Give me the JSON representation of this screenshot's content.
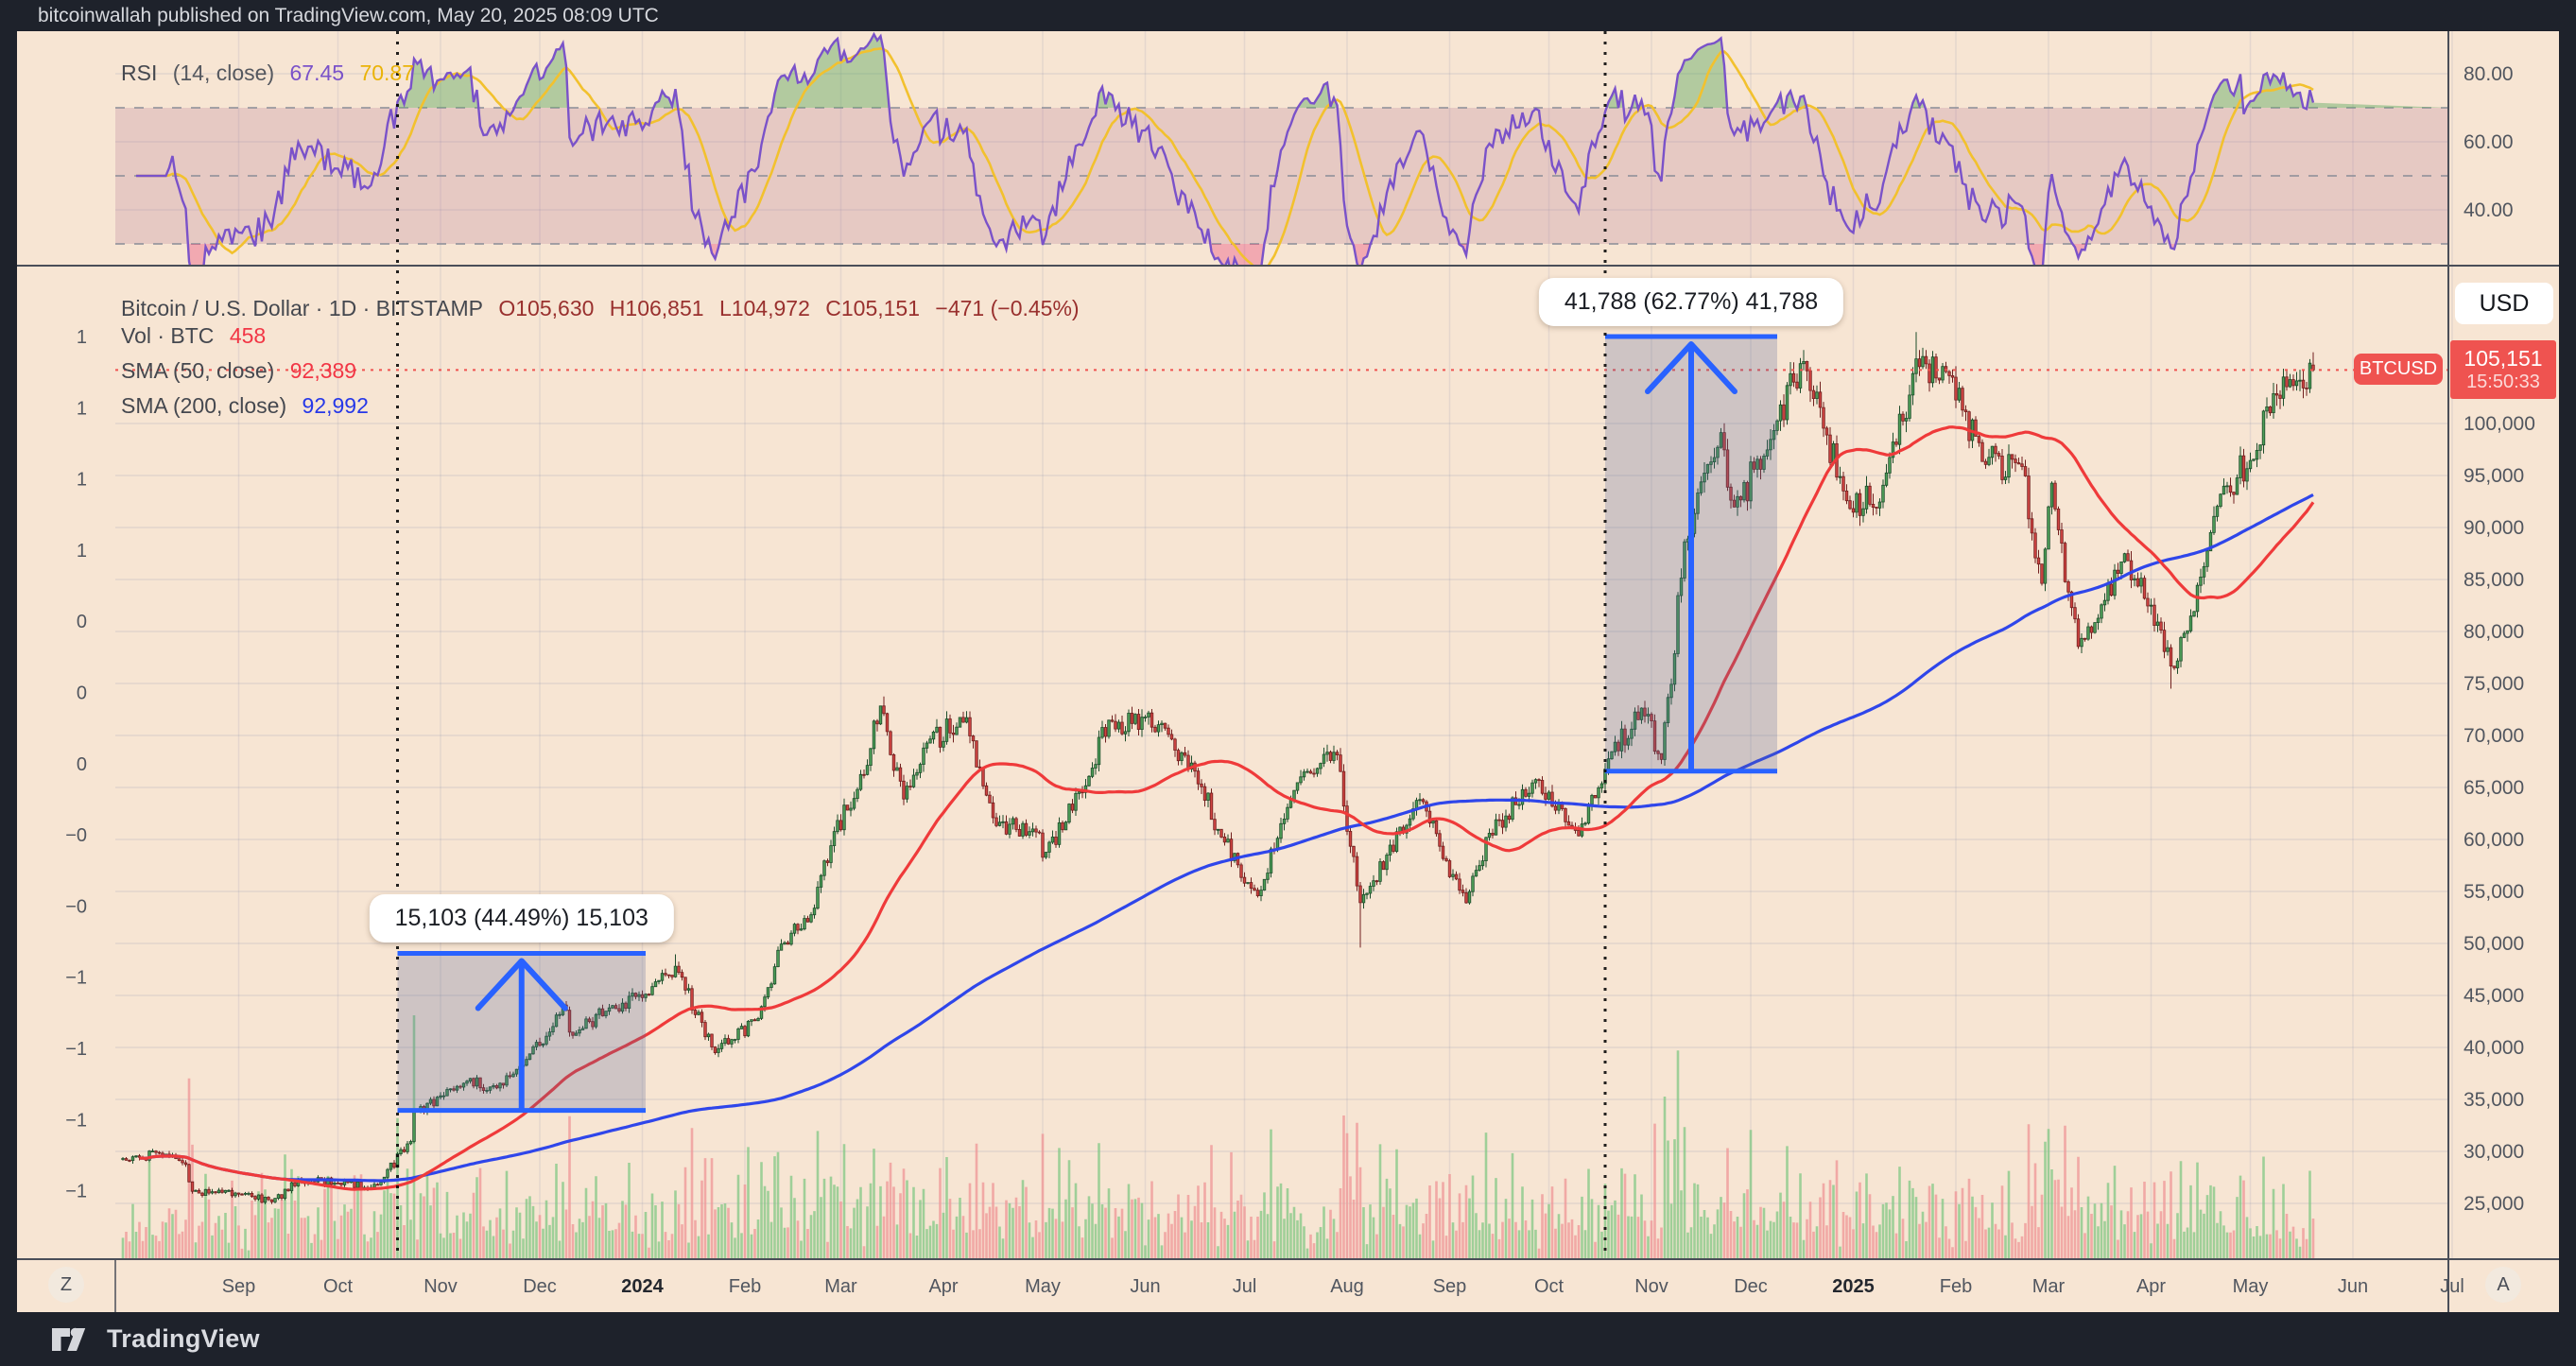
{
  "header": {
    "publish_line": "bitcoinwallah published on TradingView.com, May 20, 2025 08:09 UTC"
  },
  "footer": {
    "brand": "TradingView"
  },
  "rsi_pane": {
    "legend": {
      "title": "RSI",
      "params": "(14, close)",
      "value_main": "67.45",
      "value_ma": "70.87"
    },
    "axis_ticks": [
      "80.00",
      "60.00",
      "40.00"
    ],
    "axis_tick_values": [
      80,
      60,
      40
    ],
    "levels": {
      "upper": 70,
      "middle": 50,
      "lower": 30
    }
  },
  "main_pane": {
    "legend": {
      "symbol_line": "Bitcoin / U.S. Dollar · 1D · BITSTAMP",
      "ohlc": {
        "open": "O105,630",
        "high": "H106,851",
        "low": "L104,972",
        "close": "C105,151",
        "change": "−471 (−0.45%)"
      },
      "vol_label": "Vol · BTC",
      "vol_value": "458",
      "sma50_label": "SMA (50, close)",
      "sma50_value": "92,389",
      "sma200_label": "SMA (200, close)",
      "sma200_value": "92,992"
    },
    "price_axis": {
      "currency_button": "USD",
      "ticks": [
        "100,000",
        "95,000",
        "90,000",
        "85,000",
        "80,000",
        "75,000",
        "70,000",
        "65,000",
        "60,000",
        "55,000",
        "50,000",
        "45,000",
        "40,000",
        "35,000",
        "30,000",
        "25,000"
      ],
      "tick_values": [
        100000,
        95000,
        90000,
        85000,
        80000,
        75000,
        70000,
        65000,
        60000,
        55000,
        50000,
        45000,
        40000,
        35000,
        30000,
        25000
      ],
      "last_price": "105,151",
      "last_time": "15:50:33",
      "symbol_badge": "BTCUSD",
      "auto_label": "A"
    },
    "left_axis_ticks": [
      "1",
      "1",
      "1",
      "1",
      "0",
      "0",
      "0",
      "−0",
      "−0",
      "−1",
      "−1",
      "−1",
      "−1"
    ],
    "time_axis": {
      "zoom_reset_label": "Z",
      "labels": [
        {
          "text": "Sep",
          "date": "2023-09-01",
          "year": false
        },
        {
          "text": "Oct",
          "date": "2023-10-01",
          "year": false
        },
        {
          "text": "Nov",
          "date": "2023-11-01",
          "year": false
        },
        {
          "text": "Dec",
          "date": "2023-12-01",
          "year": false
        },
        {
          "text": "2024",
          "date": "2024-01-01",
          "year": true
        },
        {
          "text": "Feb",
          "date": "2024-02-01",
          "year": false
        },
        {
          "text": "Mar",
          "date": "2024-03-01",
          "year": false
        },
        {
          "text": "Apr",
          "date": "2024-04-01",
          "year": false
        },
        {
          "text": "May",
          "date": "2024-05-01",
          "year": false
        },
        {
          "text": "Jun",
          "date": "2024-06-01",
          "year": false
        },
        {
          "text": "Jul",
          "date": "2024-07-01",
          "year": false
        },
        {
          "text": "Aug",
          "date": "2024-08-01",
          "year": false
        },
        {
          "text": "Sep",
          "date": "2024-09-01",
          "year": false
        },
        {
          "text": "Oct",
          "date": "2024-10-01",
          "year": false
        },
        {
          "text": "Nov",
          "date": "2024-11-01",
          "year": false
        },
        {
          "text": "Dec",
          "date": "2024-12-01",
          "year": false
        },
        {
          "text": "2025",
          "date": "2025-01-01",
          "year": true
        },
        {
          "text": "Feb",
          "date": "2025-02-01",
          "year": false
        },
        {
          "text": "Mar",
          "date": "2025-03-01",
          "year": false
        },
        {
          "text": "Apr",
          "date": "2025-04-01",
          "year": false
        },
        {
          "text": "May",
          "date": "2025-05-01",
          "year": false
        },
        {
          "text": "Jun",
          "date": "2025-06-01",
          "year": false
        },
        {
          "text": "Jul",
          "date": "2025-07-01",
          "year": false
        }
      ]
    },
    "measurements": [
      {
        "label": "15,103 (44.49%) 15,103",
        "from_date": "2023-10-19",
        "to_date": "2024-01-02",
        "from_price": 33947,
        "to_price": 49050
      },
      {
        "label": "41,788 (62.77%) 41,788",
        "from_date": "2024-10-18",
        "to_date": "2024-12-09",
        "from_price": 66573,
        "to_price": 108361
      }
    ]
  },
  "chart_data": {
    "type": "candlestick",
    "title": "Bitcoin / U.S. Dollar, 1D, BITSTAMP",
    "symbol": "BTCUSD",
    "interval": "1D",
    "exchange": "BITSTAMP",
    "start_date": "2023-07-28",
    "end_date": "2025-05-20",
    "ylim": [
      19500,
      113500
    ],
    "rsi_ylim": [
      23,
      92
    ],
    "legend_position": "top-left",
    "grid": true,
    "last_candle": {
      "open": 105630,
      "high": 106851,
      "low": 104972,
      "close": 105151,
      "change": -471,
      "change_pct": -0.45
    },
    "indicators": {
      "sma50_last": 92389,
      "sma200_last": 92992,
      "rsi14_last": 67.45,
      "rsi14_ma_last": 70.87,
      "volume_btc_last": 458
    },
    "price_anchors": [
      [
        "2023-07-28",
        29300
      ],
      [
        "2023-08-08",
        29800
      ],
      [
        "2023-08-16",
        28700
      ],
      [
        "2023-08-18",
        26100
      ],
      [
        "2023-09-01",
        25900
      ],
      [
        "2023-09-11",
        25150
      ],
      [
        "2023-09-19",
        27200
      ],
      [
        "2023-10-01",
        27000
      ],
      [
        "2023-10-13",
        26800
      ],
      [
        "2023-10-23",
        31000
      ],
      [
        "2023-10-24",
        33950
      ],
      [
        "2023-11-02",
        35400
      ],
      [
        "2023-11-09",
        36700
      ],
      [
        "2023-11-16",
        36200
      ],
      [
        "2023-11-24",
        37800
      ],
      [
        "2023-12-05",
        41990
      ],
      [
        "2023-12-08",
        44200
      ],
      [
        "2023-12-11",
        41200
      ],
      [
        "2023-12-22",
        43700
      ],
      [
        "2024-01-02",
        45000
      ],
      [
        "2024-01-08",
        46950
      ],
      [
        "2024-01-11",
        47800
      ],
      [
        "2024-01-23",
        39550
      ],
      [
        "2024-02-05",
        42700
      ],
      [
        "2024-02-12",
        49900
      ],
      [
        "2024-02-20",
        52200
      ],
      [
        "2024-02-28",
        60600
      ],
      [
        "2024-03-05",
        63800
      ],
      [
        "2024-03-13",
        73000
      ],
      [
        "2024-03-20",
        63800
      ],
      [
        "2024-03-27",
        69400
      ],
      [
        "2024-04-08",
        71600
      ],
      [
        "2024-04-17",
        61300
      ],
      [
        "2024-04-30",
        60600
      ],
      [
        "2024-05-01",
        58300
      ],
      [
        "2024-05-15",
        66200
      ],
      [
        "2024-05-21",
        71400
      ],
      [
        "2024-06-06",
        71000
      ],
      [
        "2024-06-18",
        65100
      ],
      [
        "2024-06-24",
        60300
      ],
      [
        "2024-07-05",
        54700
      ],
      [
        "2024-07-16",
        64800
      ],
      [
        "2024-07-29",
        68300
      ],
      [
        "2024-08-05",
        53900
      ],
      [
        "2024-08-23",
        64000
      ],
      [
        "2024-09-06",
        53900
      ],
      [
        "2024-09-13",
        60500
      ],
      [
        "2024-09-27",
        65700
      ],
      [
        "2024-10-10",
        60300
      ],
      [
        "2024-10-20",
        68400
      ],
      [
        "2024-10-29",
        72700
      ],
      [
        "2024-11-04",
        67800
      ],
      [
        "2024-11-11",
        88700
      ],
      [
        "2024-11-22",
        98900
      ],
      [
        "2024-11-26",
        91900
      ],
      [
        "2024-12-05",
        96900
      ],
      [
        "2024-12-17",
        106100
      ],
      [
        "2024-12-30",
        92600
      ],
      [
        "2025-01-09",
        92500
      ],
      [
        "2025-01-20",
        106100
      ],
      [
        "2025-01-30",
        104700
      ],
      [
        "2025-02-09",
        96500
      ],
      [
        "2025-02-21",
        96100
      ],
      [
        "2025-02-27",
        84700
      ],
      [
        "2025-03-02",
        94300
      ],
      [
        "2025-03-10",
        78600
      ],
      [
        "2025-03-24",
        87500
      ],
      [
        "2025-03-31",
        82500
      ],
      [
        "2025-04-08",
        76300
      ],
      [
        "2025-04-22",
        93400
      ],
      [
        "2025-05-01",
        96500
      ],
      [
        "2025-05-09",
        102900
      ],
      [
        "2025-05-13",
        104200
      ],
      [
        "2025-05-18",
        103200
      ],
      [
        "2025-05-20",
        105151
      ]
    ],
    "notable_extremes": {
      "2024-01-11": {
        "high": 48950
      },
      "2024-03-14": {
        "high": 73750
      },
      "2024-08-05": {
        "low": 49600
      },
      "2025-01-20": {
        "high": 108800
      },
      "2025-04-07": {
        "low": 74500
      }
    },
    "colors": {
      "up": "#4e9e58",
      "up_border": "#1d4d2b",
      "down": "#cf4442",
      "down_border": "#71201f",
      "sma50": "#ef3a3a",
      "sma200": "#2f46ea",
      "rsi": "#7a52c9",
      "rsi_ma": "#f2c12e",
      "measure_blue": "#2962ff",
      "last_price": "#ef5350",
      "background": "#f7e5d3"
    }
  }
}
